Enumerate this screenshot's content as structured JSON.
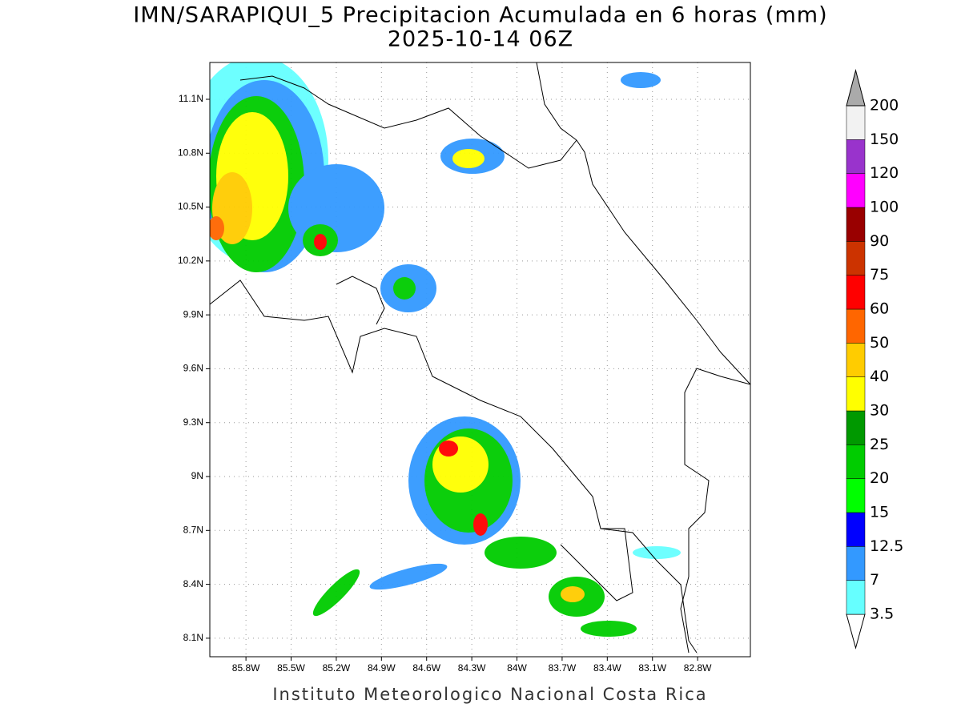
{
  "header": {
    "title": "IMN/SARAPIQUI_5 Precipitacion Acumulada en 6 horas (mm)",
    "subtitle": "2025-10-14 06Z"
  },
  "map": {
    "lon_ticks": [
      {
        "value": -85.8,
        "label": "85.8W"
      },
      {
        "value": -85.5,
        "label": "85.5W"
      },
      {
        "value": -85.2,
        "label": "85.2W"
      },
      {
        "value": -84.9,
        "label": "84.9W"
      },
      {
        "value": -84.6,
        "label": "84.6W"
      },
      {
        "value": -84.3,
        "label": "84.3W"
      },
      {
        "value": -84,
        "label": "84W"
      },
      {
        "value": -83.7,
        "label": "83.7W"
      },
      {
        "value": -83.4,
        "label": "83.4W"
      },
      {
        "value": -83.1,
        "label": "83.1W"
      },
      {
        "value": -82.8,
        "label": "82.8W"
      }
    ],
    "lat_ticks": [
      {
        "value": 11.1,
        "label": "11.1N"
      },
      {
        "value": 10.8,
        "label": "10.8N"
      },
      {
        "value": 10.5,
        "label": "10.5N"
      },
      {
        "value": 10.2,
        "label": "10.2N"
      },
      {
        "value": 9.9,
        "label": "9.9N"
      },
      {
        "value": 9.6,
        "label": "9.6N"
      },
      {
        "value": 9.3,
        "label": "9.3N"
      },
      {
        "value": 9,
        "label": "9N"
      },
      {
        "value": 8.7,
        "label": "8.7N"
      },
      {
        "value": 8.4,
        "label": "8.4N"
      },
      {
        "value": 8.1,
        "label": "8.1N"
      }
    ]
  },
  "colorbar": {
    "levels": [
      3.5,
      7,
      12.5,
      15,
      20,
      25,
      30,
      40,
      50,
      60,
      75,
      90,
      100,
      120,
      150,
      200
    ],
    "colors": [
      "#ffffff",
      "#66ffff",
      "#3399ff",
      "#0000ff",
      "#00ff00",
      "#00cc00",
      "#009900",
      "#ffff00",
      "#ffcc00",
      "#ff6600",
      "#ff0000",
      "#cc3300",
      "#990000",
      "#ff00ff",
      "#9933cc",
      "#f2f2f2",
      "#aaaaaa"
    ]
  },
  "footer": "Instituto Meteorologico Nacional Costa Rica"
}
